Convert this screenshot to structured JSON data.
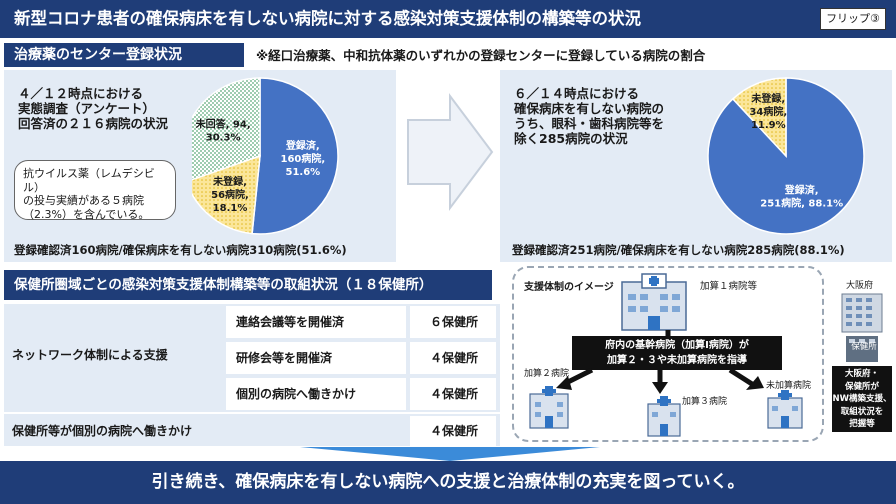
{
  "header": {
    "title": "新型コロナ患者の確保病床を有しない病院に対する感染対策支援体制の構築等の状況",
    "flip_label": "フリップ③"
  },
  "treatment_section": {
    "title": "治療薬のセンター登録状況",
    "note": "※経口治療薬、中和抗体薬のいずれかの登録センターに登録している病院の割合"
  },
  "left_panel": {
    "intro_lines": [
      "４／１２時点における",
      "実態調査（アンケート）",
      "回答済の２１６病院の状況"
    ],
    "callout_lines": [
      "抗ウイルス薬（レムデシビル）",
      "の投与実績がある５病院",
      "（2.3%）を含んでいる。"
    ],
    "summary": "登録確認済160病院/確保病床を有しない病院310病院(51.6%)"
  },
  "right_panel": {
    "intro_lines": [
      "６／１４時点における",
      "確保病床を有しない病院の",
      "うち、眼科・歯科病院等を",
      "除く285病院の状況"
    ],
    "summary": "登録確認済251病院/確保病床を有しない病院285病院(88.1%)"
  },
  "chart_data": [
    {
      "type": "pie",
      "title": "",
      "slices": [
        {
          "label": "登録済",
          "value": 160,
          "percent": 51.6,
          "color": "#4472c4",
          "text": [
            "登録済,",
            "160病院,",
            "51.6%"
          ]
        },
        {
          "label": "未登録",
          "value": 56,
          "percent": 18.1,
          "color": "#fbe69a",
          "text": [
            "未登録,",
            "56病院,",
            "18.1%"
          ]
        },
        {
          "label": "未回答",
          "value": 94,
          "percent": 30.3,
          "color": "#b7e1c8",
          "text": [
            "未回答, 94,",
            "30.3%"
          ]
        }
      ]
    },
    {
      "type": "pie",
      "title": "",
      "slices": [
        {
          "label": "登録済",
          "value": 251,
          "percent": 88.1,
          "color": "#4472c4",
          "text": [
            "登録済,",
            "251病院, 88.1%"
          ]
        },
        {
          "label": "未登録",
          "value": 34,
          "percent": 11.9,
          "color": "#fbe69a",
          "text": [
            "未登録,",
            "34病院,",
            "11.9%"
          ]
        }
      ]
    }
  ],
  "support_section": {
    "title": "保健所圏域ごとの感染対策支援体制構築等の取組状況（１８保健所）",
    "group_label": "ネットワーク体制による支援",
    "rows": [
      {
        "label": "連絡会議等を開催済",
        "value": "６保健所"
      },
      {
        "label": "研修会等を開催済",
        "value": "４保健所"
      },
      {
        "label": "個別の病院へ働きかけ",
        "value": "４保健所"
      }
    ],
    "individual_row": {
      "label": "保健所等が個別の病院へ働きかけ",
      "value": "４保健所"
    }
  },
  "diagram": {
    "title": "支援体制のイメージ",
    "top_hospital_label": "加算１病院等",
    "center_text_lines": [
      "府内の基幹病院（加算Ⅰ病院）が",
      "加算２・３や未加算病院を指導"
    ],
    "hosp2_label": "加算２病院",
    "hosp3_label": "加算３病院",
    "unadded_label": "未加算病院",
    "osaka_label": "大阪府",
    "health_center_label": "保健所",
    "osaka_support_lines": [
      "大阪府・",
      "保健所が",
      "NW構築支援、",
      "取組状況を",
      "把握等"
    ]
  },
  "footer": {
    "message": "引き続き、確保病床を有しない病院への支援と治療体制の充実を図っていく。"
  },
  "colors": {
    "navy": "#1f3d78",
    "panel": "#e3ebf5",
    "registered": "#4472c4",
    "unregistered": "#fbe69a",
    "unanswered": "#b7e1c8"
  }
}
